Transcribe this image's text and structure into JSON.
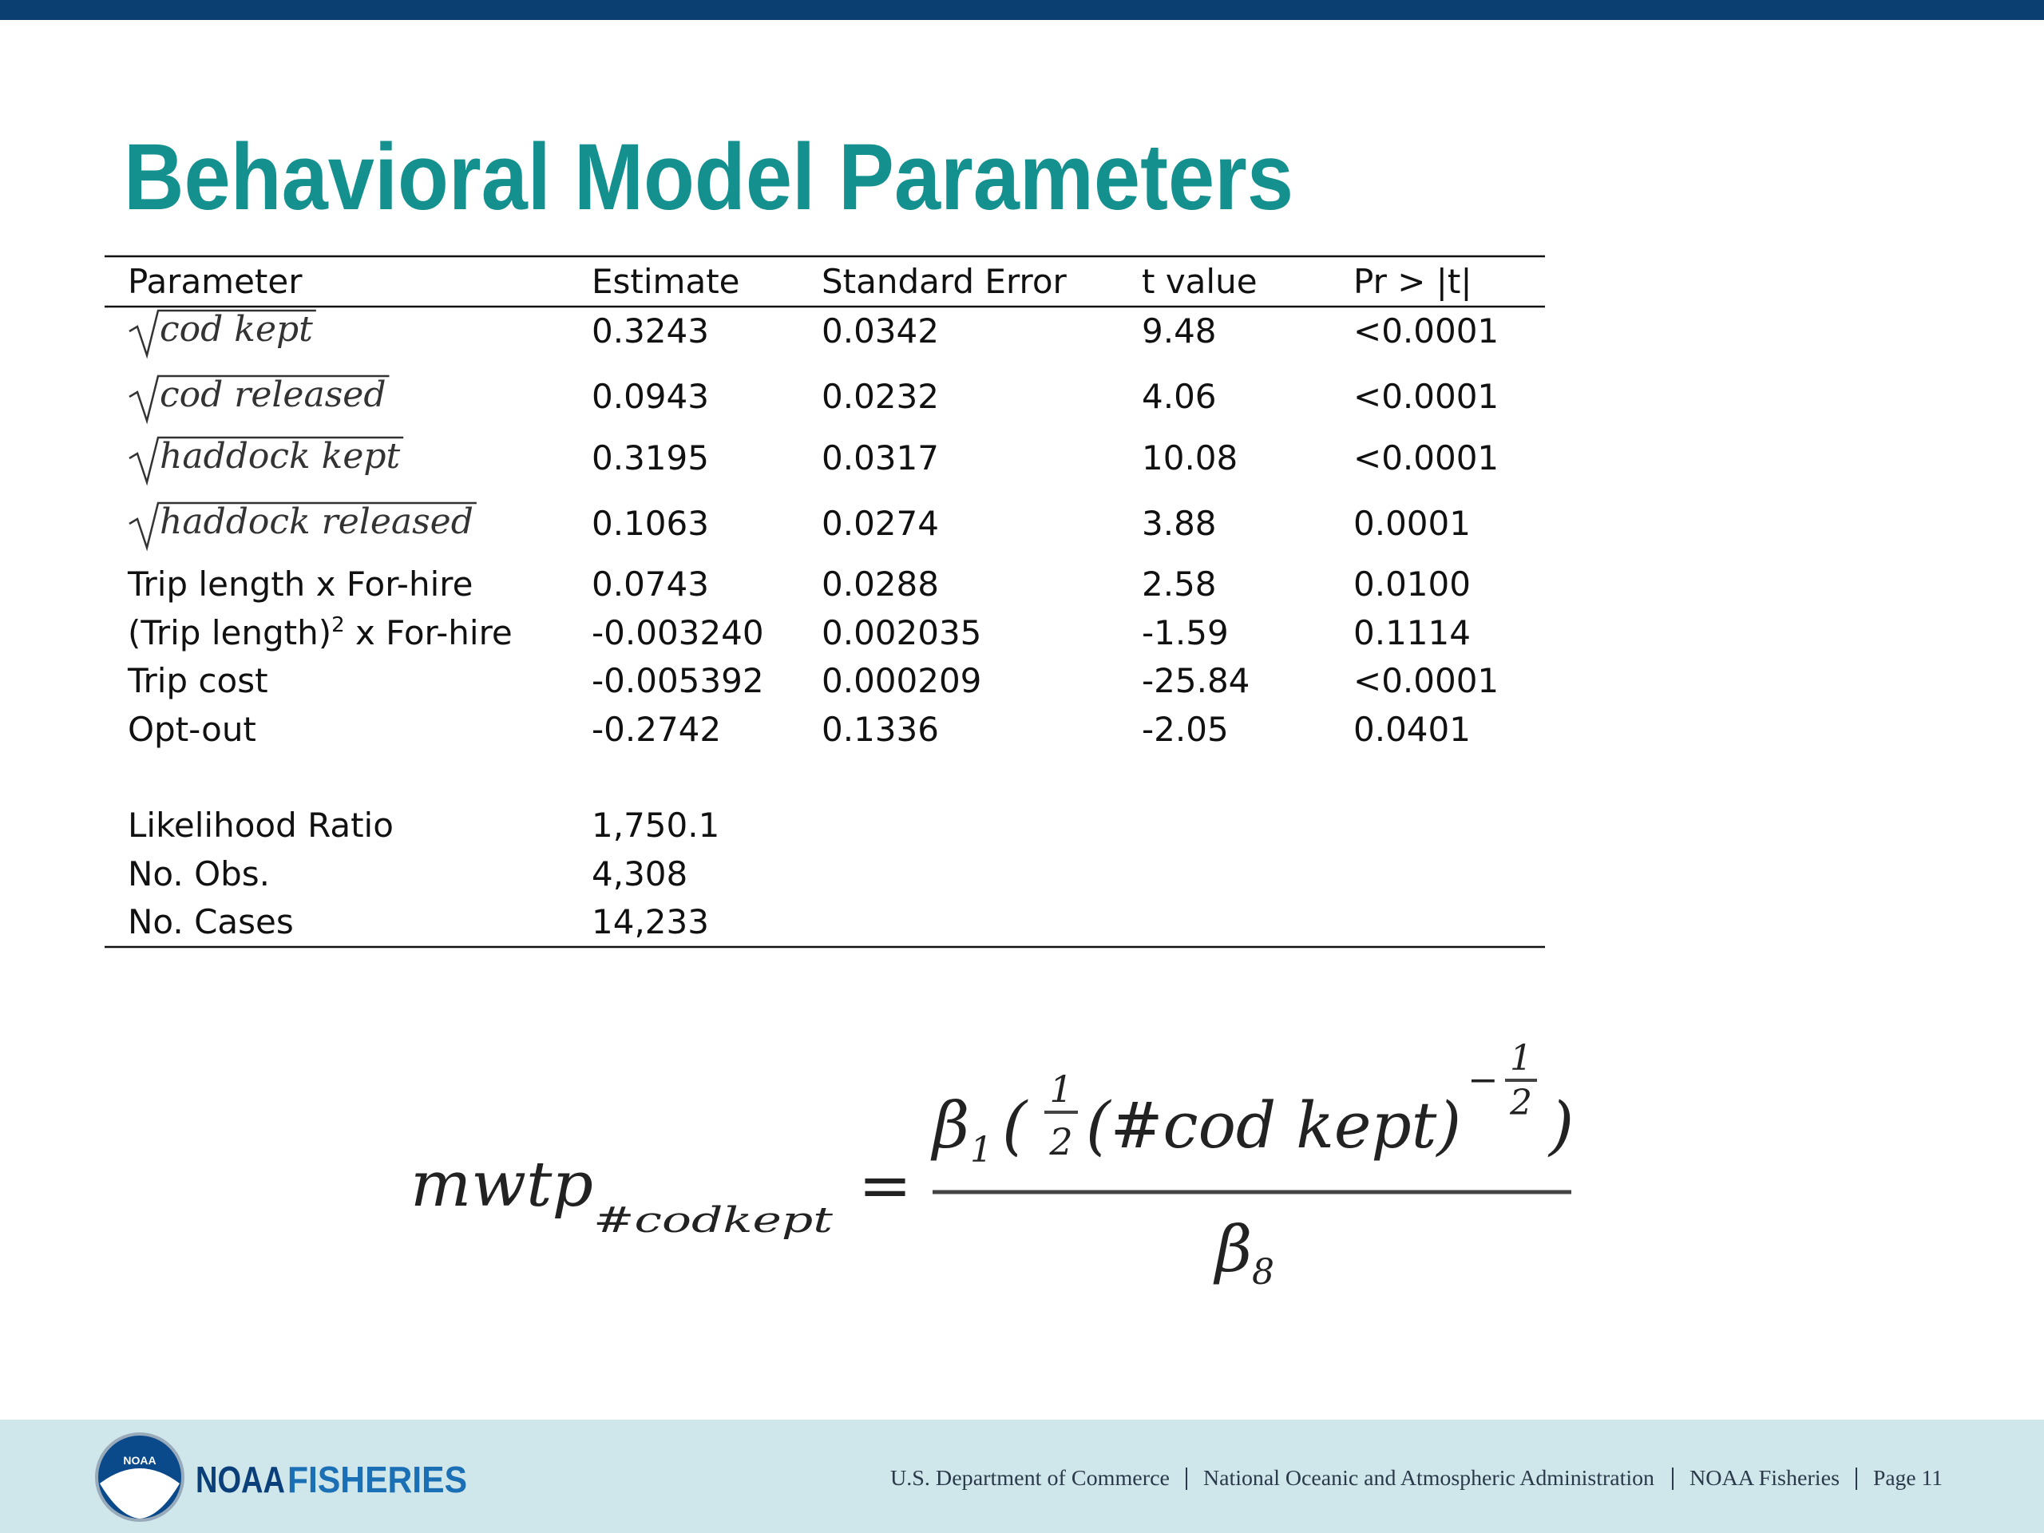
{
  "header": {
    "title": "Behavioral Model Parameters"
  },
  "table": {
    "columns": [
      "Parameter",
      "Estimate",
      "Standard Error",
      "t value",
      "Pr > |t|"
    ],
    "rows": [
      {
        "parameter": "cod kept",
        "radical": true,
        "values": [
          "0.3243",
          "0.0342",
          "9.48",
          "<0.0001"
        ]
      },
      {
        "parameter": "cod released",
        "radical": true,
        "values": [
          "0.0943",
          "0.0232",
          "4.06",
          "<0.0001"
        ]
      },
      {
        "parameter": "haddock kept",
        "radical": true,
        "values": [
          "0.3195",
          "0.0317",
          "10.08",
          "<0.0001"
        ]
      },
      {
        "parameter": "haddock released",
        "radical": true,
        "values": [
          "0.1063",
          "0.0274",
          "3.88",
          "0.0001"
        ]
      },
      {
        "parameter": "Trip length x For-hire",
        "values": [
          "0.0743",
          "0.0288",
          "2.58",
          "0.0100"
        ]
      },
      {
        "parameter": "(Trip length)",
        "superscript": "2",
        "suffix": " x For-hire",
        "values": [
          "-0.003240",
          "0.002035",
          "-1.59",
          "0.1114"
        ]
      },
      {
        "parameter": "Trip cost",
        "values": [
          "-0.005392",
          "0.000209",
          "-25.84",
          "<0.0001"
        ]
      },
      {
        "parameter": "Opt-out",
        "values": [
          "-0.2742",
          "0.1336",
          "-2.05",
          "0.0401"
        ]
      }
    ],
    "stats": [
      {
        "label": "Likelihood Ratio",
        "value": "1,750.1"
      },
      {
        "label": "No. Obs.",
        "value": "4,308"
      },
      {
        "label": "No. Cases",
        "value": "14,233"
      }
    ]
  },
  "formula": {
    "lhs": "mwtp",
    "lhs_subscript": "#codkept",
    "operator": "=",
    "numerator": {
      "symbol": "β",
      "subscript": "1",
      "open": "(",
      "fraction": [
        "1",
        "2"
      ],
      "term": "(#cod kept)",
      "exponent_sign": "−",
      "exponent": [
        "1",
        "2"
      ],
      "close": ")"
    },
    "denominator": {
      "symbol": "β",
      "subscript": "8"
    }
  },
  "footer": {
    "logo_badge": "NOAA",
    "brand": [
      "NOAA",
      "FISHERIES"
    ],
    "links": [
      "U.S. Department of Commerce",
      "National Oceanic and Atmospheric Administration",
      "NOAA Fisheries",
      "Page 11"
    ]
  }
}
